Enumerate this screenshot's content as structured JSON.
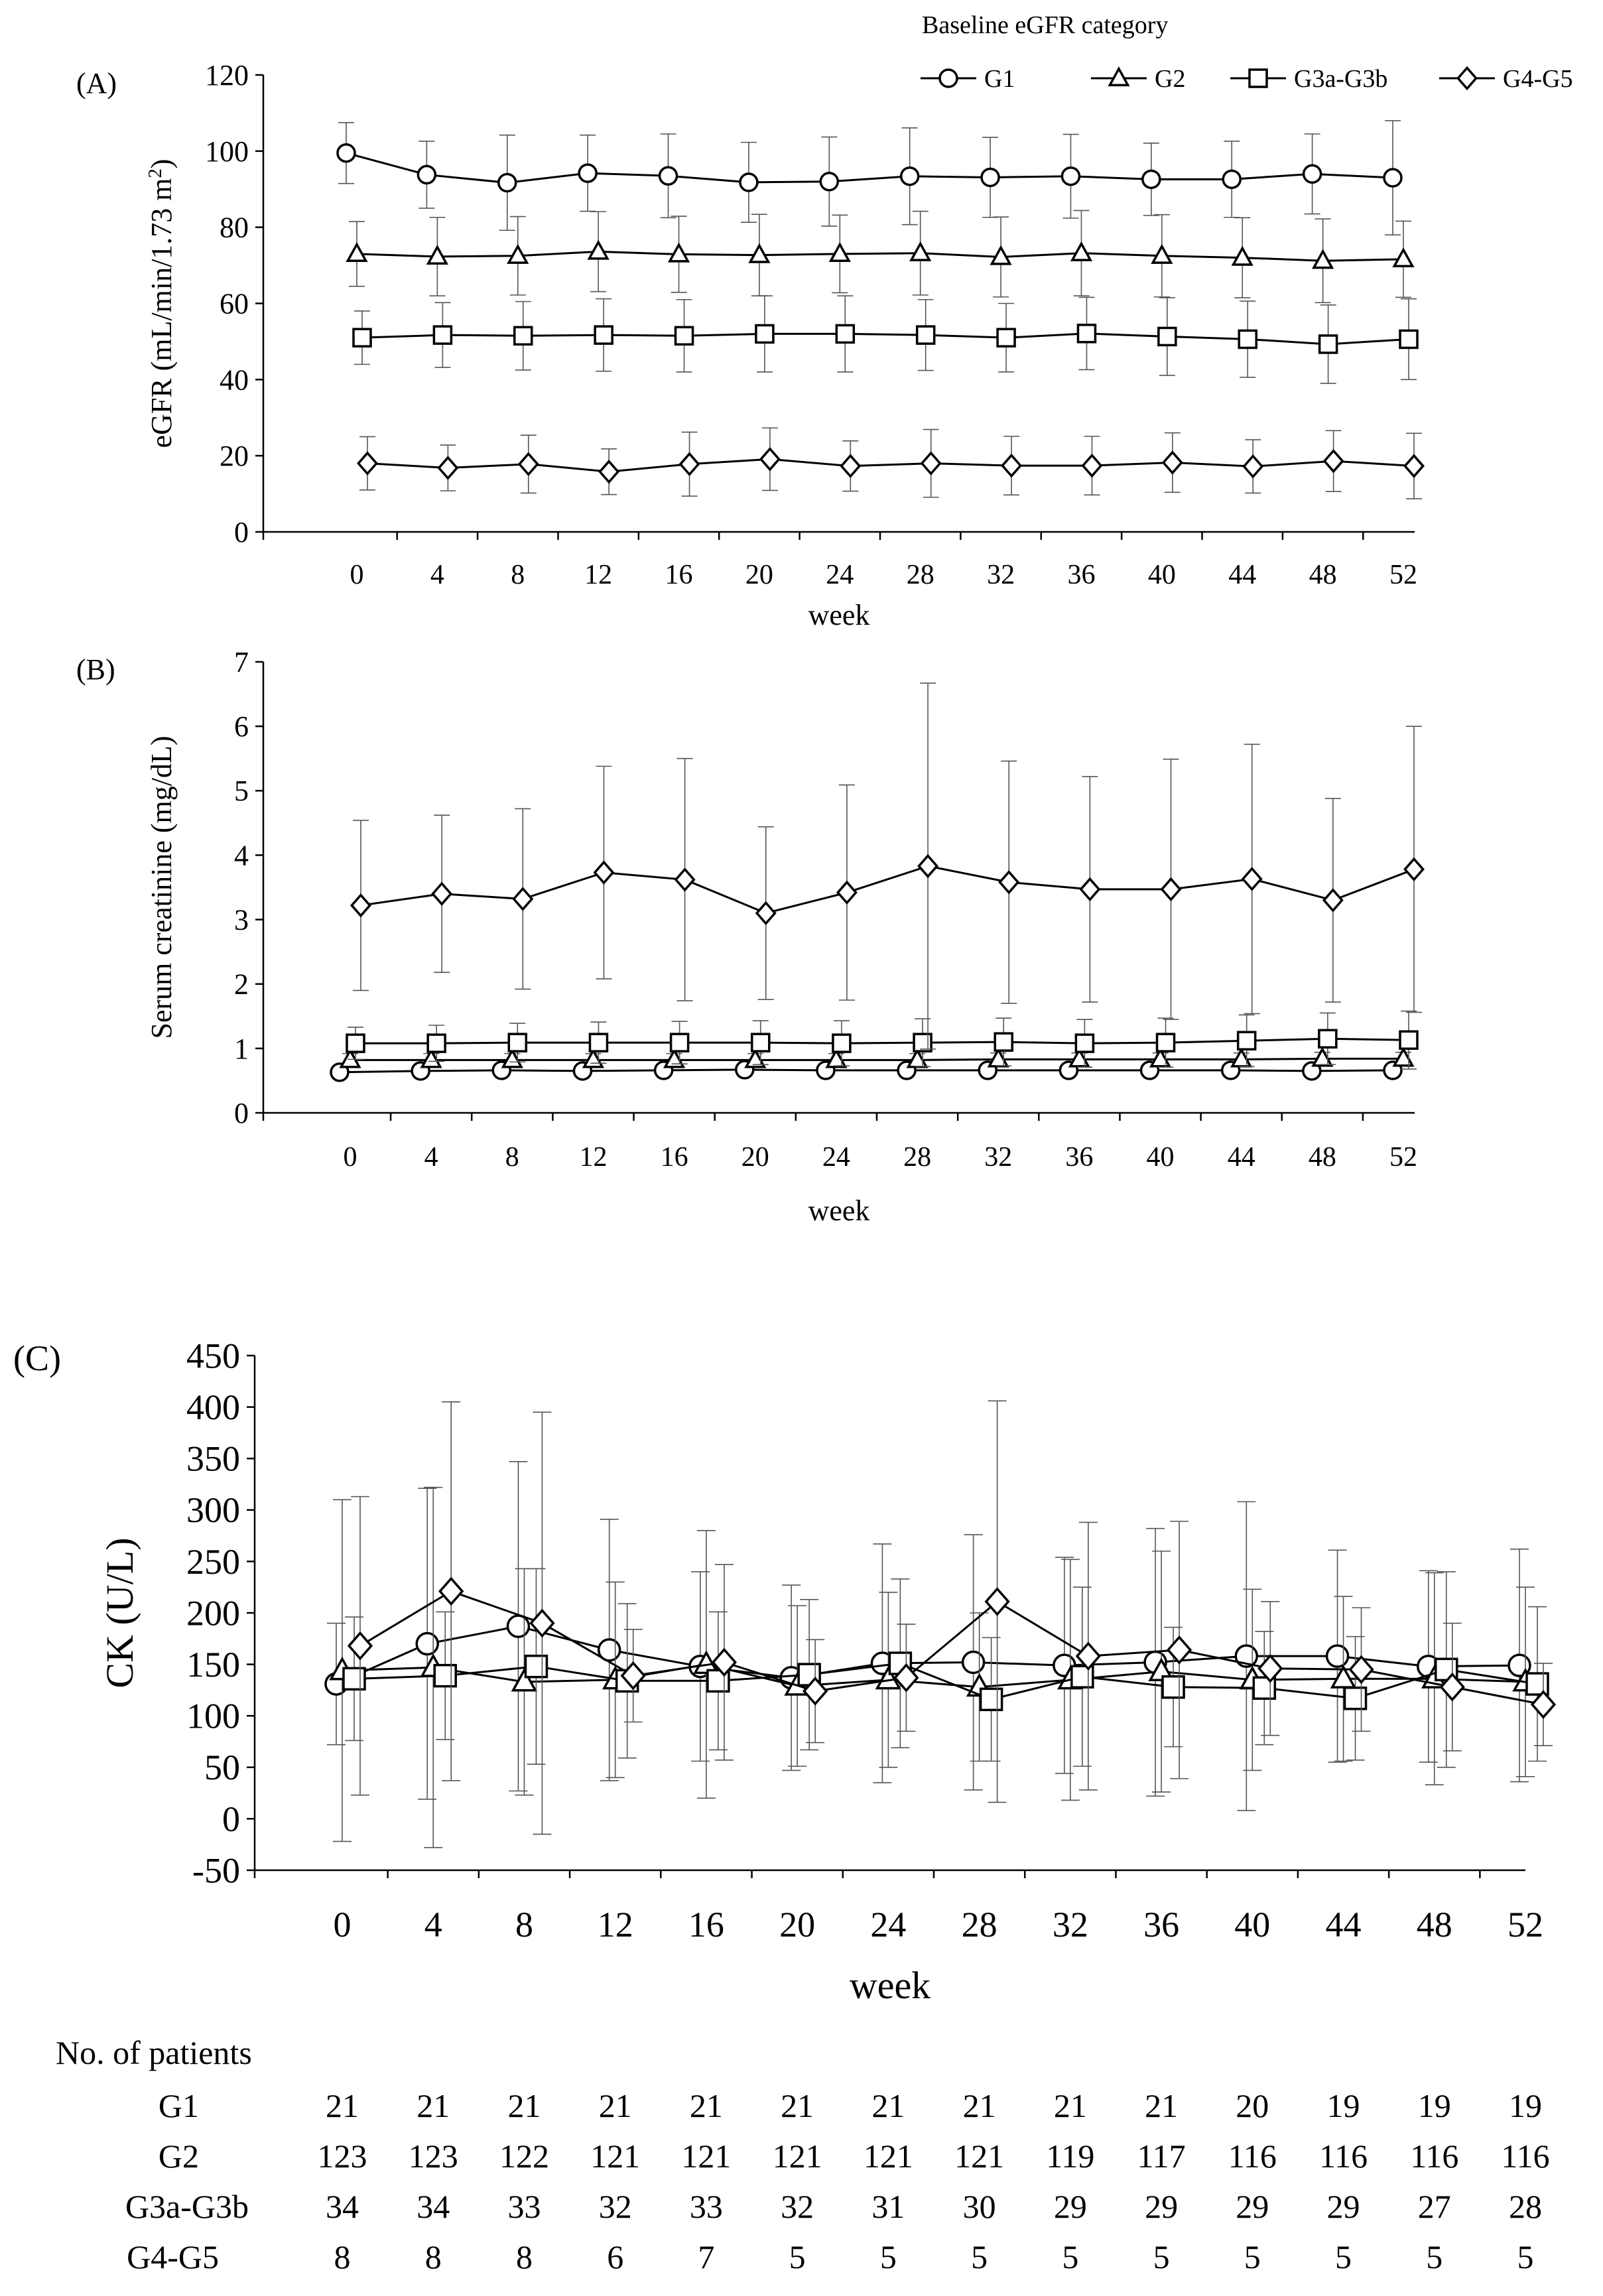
{
  "legend": {
    "title": "Baseline eGFR category",
    "entries": [
      {
        "name": "G1",
        "marker": "circle"
      },
      {
        "name": "G2",
        "marker": "triangle"
      },
      {
        "name": "G3a-G3b",
        "marker": "square"
      },
      {
        "name": "G4-G5",
        "marker": "diamond"
      }
    ]
  },
  "chart_data": [
    {
      "type": "line",
      "panel": "(A)",
      "ylabel": "eGFR (mL/min/1.73 m",
      "ylabel_sup": "2",
      "ylabel_tail": ")",
      "xlabel": "week",
      "x": [
        0,
        4,
        8,
        12,
        16,
        20,
        24,
        28,
        32,
        36,
        40,
        44,
        48,
        52
      ],
      "ylim": [
        0,
        120
      ],
      "yticks": [
        0,
        20,
        40,
        60,
        80,
        100,
        120
      ],
      "series": [
        {
          "name": "G1",
          "marker": "circle",
          "values": [
            99.5,
            93.8,
            91.7,
            94.2,
            93.5,
            91.8,
            92,
            93.4,
            93.1,
            93.4,
            92.6,
            92.6,
            94,
            93
          ],
          "err": [
            8,
            8.8,
            12.5,
            10,
            11,
            10.5,
            11.7,
            12.7,
            10.5,
            11,
            9.5,
            10,
            10.5,
            15
          ]
        },
        {
          "name": "G2",
          "marker": "triangle",
          "values": [
            73,
            72.3,
            72.5,
            73.6,
            72.9,
            72.7,
            73,
            73.2,
            72.2,
            73.2,
            72.5,
            72,
            71.2,
            71.6
          ],
          "err": [
            8.5,
            10.3,
            10.3,
            10.5,
            10,
            10.7,
            10.2,
            11,
            10.5,
            11.2,
            10.8,
            10.5,
            11,
            10
          ]
        },
        {
          "name": "G3a-G3b",
          "marker": "square",
          "values": [
            51,
            51.7,
            51.5,
            51.7,
            51.5,
            52,
            52,
            51.7,
            51,
            52.1,
            51.3,
            50.6,
            49.3,
            50.6
          ],
          "err": [
            7,
            8.5,
            9,
            9.5,
            9.5,
            10,
            10,
            9.3,
            9,
            9.5,
            10.2,
            10,
            10.3,
            10.6
          ]
        },
        {
          "name": "G4-G5",
          "marker": "diamond",
          "values": [
            18,
            16.8,
            17.8,
            15.8,
            17.8,
            19.1,
            17.3,
            18,
            17.4,
            17.4,
            18.2,
            17.2,
            18.6,
            17.3
          ],
          "err": [
            7,
            6,
            7.6,
            6,
            8.4,
            8.2,
            6.6,
            8.9,
            7.7,
            7.7,
            7.8,
            7,
            8,
            8.6
          ]
        }
      ]
    },
    {
      "type": "line",
      "panel": "(B)",
      "ylabel": "Serum creatinine (mg/dL)",
      "xlabel": "week",
      "x": [
        0,
        4,
        8,
        12,
        16,
        20,
        24,
        28,
        32,
        36,
        40,
        44,
        48,
        52
      ],
      "ylim": [
        0,
        7
      ],
      "yticks": [
        0,
        1,
        2,
        3,
        4,
        5,
        6,
        7
      ],
      "series": [
        {
          "name": "G1",
          "marker": "circle",
          "values": [
            0.63,
            0.65,
            0.66,
            0.65,
            0.66,
            0.67,
            0.66,
            0.66,
            0.66,
            0.66,
            0.66,
            0.66,
            0.65,
            0.66
          ],
          "err": [
            0.08,
            0.08,
            0.08,
            0.08,
            0.08,
            0.08,
            0.08,
            0.08,
            0.08,
            0.08,
            0.08,
            0.08,
            0.08,
            0.08
          ]
        },
        {
          "name": "G2",
          "marker": "triangle",
          "values": [
            0.82,
            0.82,
            0.82,
            0.82,
            0.82,
            0.82,
            0.82,
            0.82,
            0.83,
            0.83,
            0.83,
            0.83,
            0.84,
            0.84
          ],
          "err": [
            0.1,
            0.1,
            0.1,
            0.1,
            0.1,
            0.1,
            0.1,
            0.1,
            0.1,
            0.1,
            0.1,
            0.1,
            0.1,
            0.1
          ]
        },
        {
          "name": "G3a-G3b",
          "marker": "square",
          "values": [
            1.08,
            1.08,
            1.09,
            1.09,
            1.09,
            1.09,
            1.08,
            1.09,
            1.1,
            1.08,
            1.09,
            1.12,
            1.15,
            1.13
          ],
          "err": [
            0.25,
            0.28,
            0.3,
            0.32,
            0.33,
            0.34,
            0.35,
            0.37,
            0.37,
            0.37,
            0.38,
            0.4,
            0.4,
            0.45
          ]
        },
        {
          "name": "G4-G5",
          "marker": "diamond",
          "values": [
            3.22,
            3.4,
            3.32,
            3.73,
            3.62,
            3.1,
            3.42,
            3.83,
            3.58,
            3.47,
            3.47,
            3.63,
            3.3,
            3.78
          ],
          "err": [
            1.32,
            1.22,
            1.4,
            1.65,
            1.88,
            1.34,
            1.67,
            2.84,
            1.88,
            1.75,
            2.02,
            2.09,
            1.58,
            2.22
          ]
        }
      ]
    },
    {
      "type": "line",
      "panel": "(C)",
      "ylabel": "CK (U/L)",
      "xlabel": "week",
      "x": [
        0,
        4,
        8,
        12,
        16,
        20,
        24,
        28,
        32,
        36,
        40,
        44,
        48,
        52
      ],
      "ylim": [
        -50,
        450
      ],
      "yticks": [
        -50,
        0,
        50,
        100,
        150,
        200,
        250,
        300,
        350,
        400,
        450
      ],
      "series": [
        {
          "name": "G1",
          "marker": "circle",
          "values": [
            131,
            170,
            187,
            164,
            148,
            137,
            151,
            152,
            149,
            152,
            158,
            158,
            148,
            149
          ],
          "err": [
            59,
            151,
            160,
            127,
            92,
            90,
            116,
            124,
            105,
            130,
            150,
            103,
            93,
            113
          ]
        },
        {
          "name": "G2",
          "marker": "triangle",
          "values": [
            144,
            147,
            133,
            135,
            150,
            129,
            135,
            128,
            135,
            143,
            135,
            136,
            136,
            133
          ],
          "err": [
            166,
            175,
            110,
            95,
            130,
            78,
            85,
            72,
            117,
            117,
            88,
            80,
            103,
            92
          ]
        },
        {
          "name": "G3a-G3b",
          "marker": "square",
          "values": [
            136,
            139,
            148,
            134,
            134,
            140,
            151,
            116,
            138,
            128,
            127,
            117,
            145,
            131
          ],
          "err": [
            60,
            62,
            95,
            75,
            67,
            73,
            82,
            60,
            87,
            58,
            55,
            60,
            95,
            75
          ]
        },
        {
          "name": "G4-G5",
          "marker": "diamond",
          "values": [
            168,
            221,
            190,
            139,
            152,
            124,
            137,
            211,
            158,
            164,
            146,
            145,
            128,
            111
          ],
          "err": [
            145,
            184,
            205,
            45,
            95,
            50,
            52,
            195,
            130,
            125,
            65,
            60,
            62,
            40
          ]
        }
      ]
    }
  ],
  "patients_table": {
    "title": "No. of patients",
    "rows": [
      {
        "label": "G1",
        "values": [
          "21",
          "21",
          "21",
          "21",
          "21",
          "21",
          "21",
          "21",
          "21",
          "21",
          "20",
          "19",
          "19",
          "19"
        ]
      },
      {
        "label": "G2",
        "values": [
          "123",
          "123",
          "122",
          "121",
          "121",
          "121",
          "121",
          "121",
          "119",
          "117",
          "116",
          "116",
          "116",
          "116"
        ]
      },
      {
        "label": "G3a-G3b",
        "values": [
          "34",
          "34",
          "33",
          "32",
          "33",
          "32",
          "31",
          "30",
          "29",
          "29",
          "29",
          "29",
          "27",
          "28"
        ]
      },
      {
        "label": "G4-G5",
        "values": [
          "8",
          "8",
          "8",
          "6",
          "7",
          "5",
          "5",
          "5",
          "5",
          "5",
          "5",
          "5",
          "5",
          "5"
        ]
      }
    ]
  }
}
